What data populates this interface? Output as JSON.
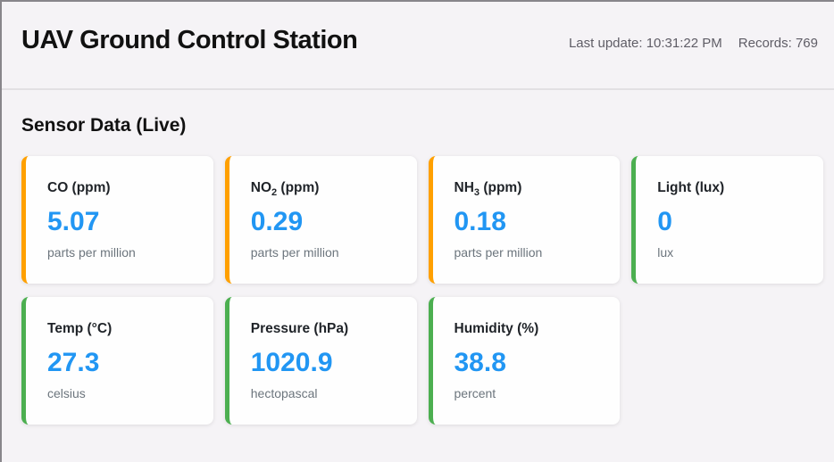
{
  "header": {
    "title": "UAV Ground Control Station",
    "last_update_label": "Last update:",
    "last_update_value": "10:31:22 PM",
    "records_label": "Records:",
    "records_value": "769"
  },
  "section": {
    "title": "Sensor Data (Live)"
  },
  "colors": {
    "accent_orange": "#ffa000",
    "accent_green": "#4caf50",
    "value_blue": "#2196f3",
    "page_background": "#f5f3f6",
    "card_background": "#fefefe"
  },
  "cards": [
    {
      "label_main": "CO",
      "label_sub": "",
      "label_rest": " (ppm)",
      "value": "5.07",
      "unit": "parts per million",
      "accent": "#ffa000"
    },
    {
      "label_main": "NO",
      "label_sub": "2",
      "label_rest": " (ppm)",
      "value": "0.29",
      "unit": "parts per million",
      "accent": "#ffa000"
    },
    {
      "label_main": "NH",
      "label_sub": "3",
      "label_rest": " (ppm)",
      "value": "0.18",
      "unit": "parts per million",
      "accent": "#ffa000"
    },
    {
      "label_main": "Light",
      "label_sub": "",
      "label_rest": " (lux)",
      "value": "0",
      "unit": "lux",
      "accent": "#4caf50"
    },
    {
      "label_main": "Temp",
      "label_sub": "",
      "label_rest": " (°C)",
      "value": "27.3",
      "unit": "celsius",
      "accent": "#4caf50"
    },
    {
      "label_main": "Pressure",
      "label_sub": "",
      "label_rest": " (hPa)",
      "value": "1020.9",
      "unit": "hectopascal",
      "accent": "#4caf50"
    },
    {
      "label_main": "Humidity",
      "label_sub": "",
      "label_rest": " (%)",
      "value": "38.8",
      "unit": "percent",
      "accent": "#4caf50"
    }
  ]
}
